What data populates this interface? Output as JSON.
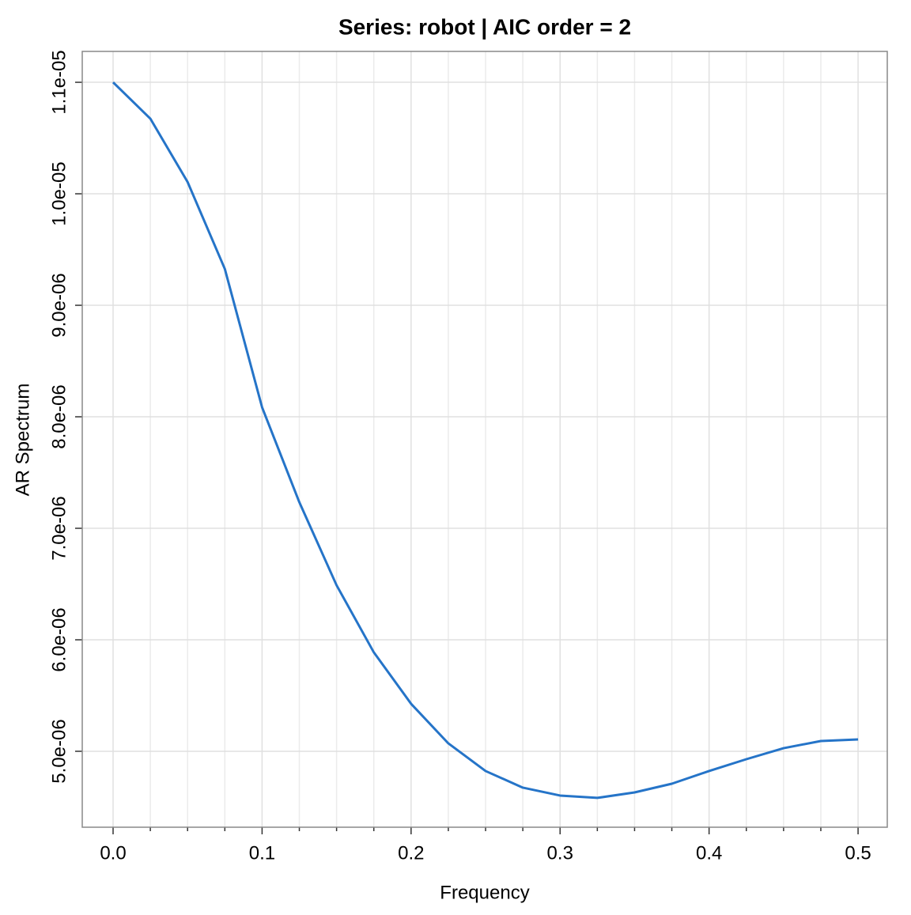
{
  "chart_data": {
    "type": "line",
    "title": "Series: robot  |  AIC order = 2",
    "x_label": "Frequency",
    "y_label": "AR Spectrum",
    "x": [
      0,
      0.025,
      0.05,
      0.075,
      0.1,
      0.125,
      0.15,
      0.175,
      0.2,
      0.225,
      0.25,
      0.275,
      0.3,
      0.325,
      0.35,
      0.375,
      0.4,
      0.425,
      0.45,
      0.475,
      0.5
    ],
    "series": [
      {
        "name": "robot",
        "color": "#2574c8",
        "values": [
          1.1e-05,
          1.0674e-05,
          1.0106e-05,
          9.326e-06,
          8.085e-06,
          7.234e-06,
          6.489e-06,
          5.887e-06,
          5.426e-06,
          5.071e-06,
          4.823e-06,
          4.674e-06,
          4.603e-06,
          4.582e-06,
          4.631e-06,
          4.709e-06,
          4.823e-06,
          4.929e-06,
          5.028e-06,
          5.092e-06,
          5.106e-06
        ]
      }
    ],
    "xlim": [
      -0.0207,
      0.5196
    ],
    "ylim": [
      4.319e-06,
      1.1277e-05
    ],
    "xticks": [
      {
        "value": 0,
        "label": "0.0"
      },
      0.1,
      0.2,
      0.3,
      0.4,
      0.5
    ],
    "xminorticks": [
      0.025,
      0.05,
      0.075,
      0.125,
      0.15,
      0.175,
      0.225,
      0.25,
      0.275,
      0.325,
      0.35,
      0.375,
      0.425,
      0.45,
      0.475
    ],
    "yticks": [
      {
        "value": 5e-06,
        "label": "5.0e-06"
      },
      {
        "value": 6e-06,
        "label": "6.0e-06"
      },
      {
        "value": 7e-06,
        "label": "7.0e-06"
      },
      {
        "value": 8e-06,
        "label": "8.0e-06"
      },
      {
        "value": 9e-06,
        "label": "9.0e-06"
      },
      {
        "value": 1e-05,
        "label": "1.0e-05"
      },
      {
        "value": 1.1e-05,
        "label": "1.1e-05"
      }
    ],
    "grid": true
  }
}
